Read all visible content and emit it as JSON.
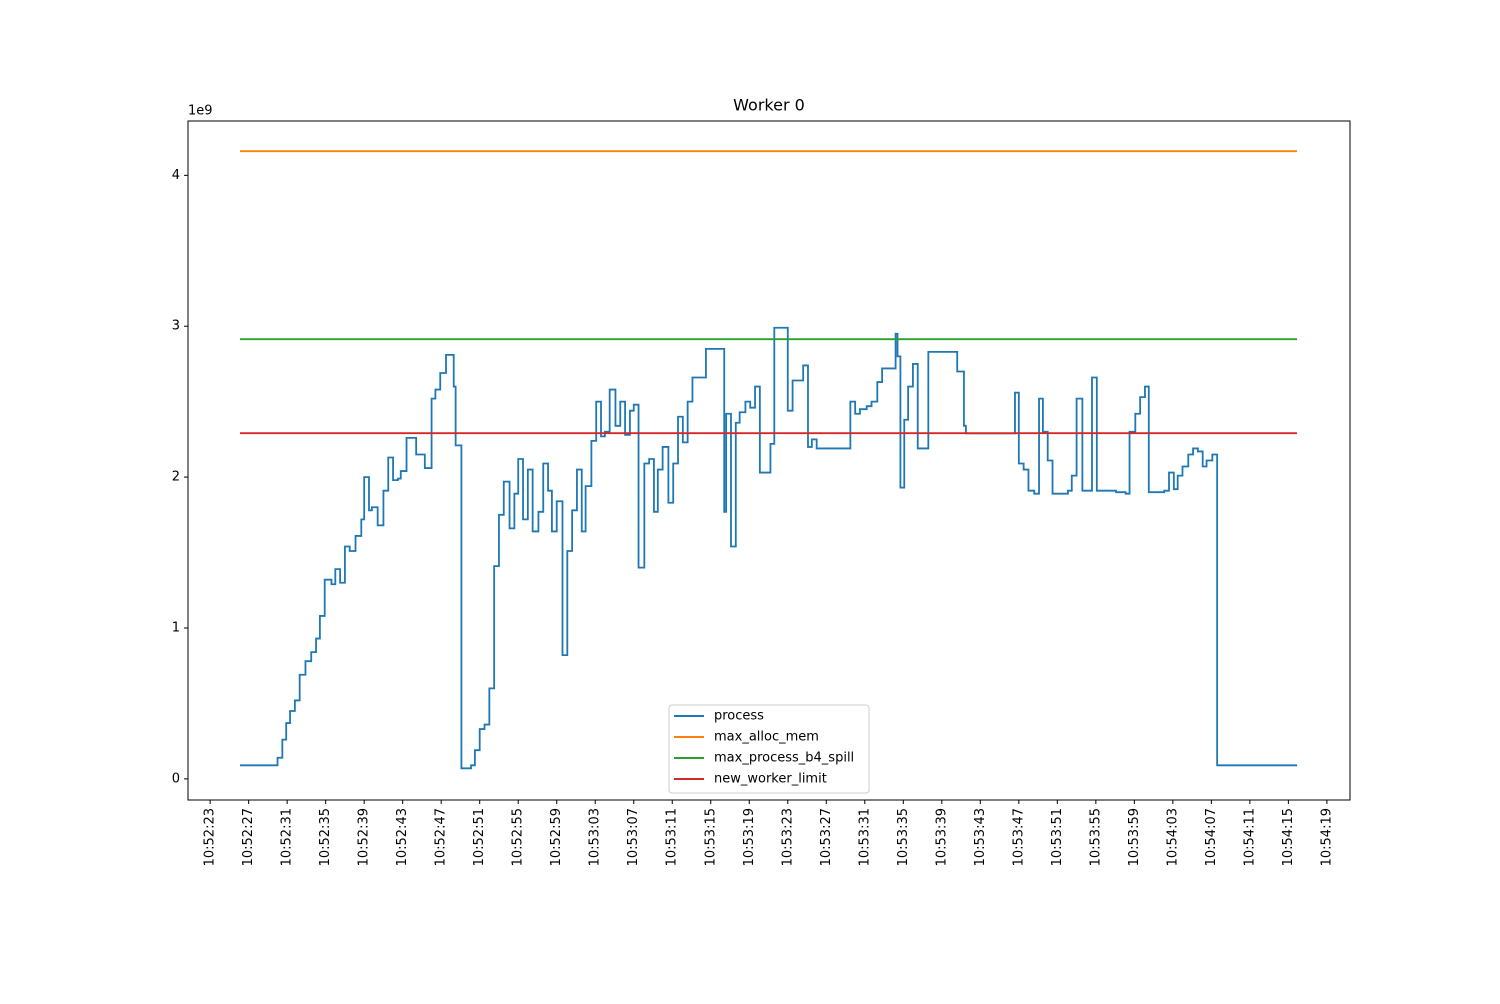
{
  "chart_data": {
    "type": "line",
    "drawstyle": "steps-post",
    "title": "Worker 0",
    "y_offset_label": "1e9",
    "xlim": [
      "10:52:20.7",
      "10:54:21.4"
    ],
    "xticks": [
      "10:52:23",
      "10:52:27",
      "10:52:31",
      "10:52:35",
      "10:52:39",
      "10:52:43",
      "10:52:47",
      "10:52:51",
      "10:52:55",
      "10:52:59",
      "10:53:03",
      "10:53:07",
      "10:53:11",
      "10:53:15",
      "10:53:19",
      "10:53:23",
      "10:53:27",
      "10:53:31",
      "10:53:35",
      "10:53:39",
      "10:53:43",
      "10:53:47",
      "10:53:51",
      "10:53:55",
      "10:53:59",
      "10:54:03",
      "10:54:07",
      "10:54:11",
      "10:54:15",
      "10:54:19"
    ],
    "ylim": [
      -0.14,
      4.36
    ],
    "yticks": [
      0,
      1,
      2,
      3,
      4
    ],
    "grid": false,
    "legend": "lower center",
    "series": [
      {
        "name": "process",
        "color": "#1f77b4",
        "x": [
          "10:52:26.1",
          "10:52:30.0",
          "10:52:30.5",
          "10:52:30.9",
          "10:52:31.3",
          "10:52:31.8",
          "10:52:32.3",
          "10:52:32.9",
          "10:52:33.5",
          "10:52:34.0",
          "10:52:34.4",
          "10:52:34.9",
          "10:52:35.6",
          "10:52:36.0",
          "10:52:36.5",
          "10:52:37.0",
          "10:52:37.5",
          "10:52:38.1",
          "10:52:38.7",
          "10:52:39.0",
          "10:52:39.5",
          "10:52:39.8",
          "10:52:40.4",
          "10:52:41.0",
          "10:52:41.5",
          "10:52:42.0",
          "10:52:42.5",
          "10:52:42.8",
          "10:52:43.4",
          "10:52:44.4",
          "10:52:45.3",
          "10:52:46.0",
          "10:52:46.4",
          "10:52:46.9",
          "10:52:47.5",
          "10:52:48.3",
          "10:52:48.5",
          "10:52:49.1",
          "10:52:50.1",
          "10:52:50.5",
          "10:52:51.0",
          "10:52:51.5",
          "10:52:52.0",
          "10:52:52.5",
          "10:52:53.0",
          "10:52:53.5",
          "10:52:54.1",
          "10:52:54.6",
          "10:52:55.0",
          "10:52:55.5",
          "10:52:56.0",
          "10:52:56.5",
          "10:52:57.1",
          "10:52:57.6",
          "10:52:58.1",
          "10:52:58.5",
          "10:52:59.0",
          "10:52:59.6",
          "10:53:00.1",
          "10:53:00.6",
          "10:53:01.1",
          "10:53:01.6",
          "10:53:02.0",
          "10:53:02.6",
          "10:53:03.1",
          "10:53:03.6",
          "10:53:04.0",
          "10:53:04.5",
          "10:53:05.1",
          "10:53:05.6",
          "10:53:06.1",
          "10:53:06.6",
          "10:53:07.0",
          "10:53:07.5",
          "10:53:08.1",
          "10:53:08.6",
          "10:53:09.1",
          "10:53:09.5",
          "10:53:10.0",
          "10:53:10.6",
          "10:53:11.1",
          "10:53:11.6",
          "10:53:12.1",
          "10:53:12.6",
          "10:53:13.1",
          "10:53:14.5",
          "10:53:16.4",
          "10:53:16.6",
          "10:53:17.1",
          "10:53:17.6",
          "10:53:18.0",
          "10:53:18.6",
          "10:53:19.1",
          "10:53:19.6",
          "10:53:20.1",
          "10:53:21.2",
          "10:53:21.6",
          "10:53:23.0",
          "10:53:23.5",
          "10:53:24.6",
          "10:53:25.1",
          "10:53:25.5",
          "10:53:26.0",
          "10:53:29.5",
          "10:53:30.0",
          "10:53:30.5",
          "10:53:31.2",
          "10:53:31.7",
          "10:53:32.3",
          "10:53:32.8",
          "10:53:34.2",
          "10:53:34.4",
          "10:53:34.7",
          "10:53:35.1",
          "10:53:35.5",
          "10:53:36.0",
          "10:53:36.5",
          "10:53:37.6",
          "10:53:40.6",
          "10:53:41.3",
          "10:53:41.5",
          "10:53:46.6",
          "10:53:47.0",
          "10:53:47.5",
          "10:53:48.0",
          "10:53:48.6",
          "10:53:49.1",
          "10:53:49.5",
          "10:53:50.0",
          "10:53:50.5",
          "10:53:52.1",
          "10:53:52.5",
          "10:53:53.0",
          "10:53:53.6",
          "10:53:54.1",
          "10:53:54.6",
          "10:53:55.1",
          "10:53:57.1",
          "10:53:58.1",
          "10:53:58.5",
          "10:53:59.1",
          "10:53:59.6",
          "10:54:00.1",
          "10:54:00.5",
          "10:54:02.1",
          "10:54:02.6",
          "10:54:03.1",
          "10:54:03.5",
          "10:54:04.0",
          "10:54:04.6",
          "10:54:05.1",
          "10:54:05.6",
          "10:54:06.1",
          "10:54:06.5",
          "10:54:07.1",
          "10:54:07.6",
          "10:54:15.9"
        ],
        "values": [
          0.09,
          0.14,
          0.26,
          0.37,
          0.45,
          0.52,
          0.69,
          0.78,
          0.84,
          0.93,
          1.08,
          1.32,
          1.29,
          1.39,
          1.3,
          1.54,
          1.51,
          1.61,
          1.72,
          2.0,
          1.78,
          1.8,
          1.68,
          1.91,
          2.13,
          1.98,
          1.99,
          2.04,
          2.26,
          2.15,
          2.06,
          2.52,
          2.58,
          2.69,
          2.81,
          2.6,
          2.21,
          0.07,
          0.09,
          0.19,
          0.33,
          0.36,
          0.6,
          1.41,
          1.75,
          1.97,
          1.66,
          1.89,
          2.12,
          1.72,
          2.05,
          1.64,
          1.77,
          2.09,
          1.91,
          1.64,
          1.84,
          0.82,
          1.51,
          1.78,
          2.05,
          1.64,
          1.94,
          2.24,
          2.5,
          2.27,
          2.3,
          2.58,
          2.34,
          2.5,
          2.28,
          2.44,
          2.48,
          1.4,
          2.09,
          2.12,
          1.77,
          2.05,
          2.2,
          1.83,
          2.09,
          2.4,
          2.23,
          2.5,
          2.66,
          2.85,
          1.77,
          2.42,
          1.54,
          2.36,
          2.43,
          2.5,
          2.46,
          2.6,
          2.03,
          2.22,
          2.99,
          2.44,
          2.64,
          2.74,
          2.2,
          2.25,
          2.19,
          2.5,
          2.42,
          2.45,
          2.47,
          2.5,
          2.63,
          2.72,
          2.95,
          2.8,
          1.93,
          2.38,
          2.6,
          2.75,
          2.19,
          2.83,
          2.7,
          2.34,
          2.29,
          2.56,
          2.09,
          2.05,
          1.91,
          1.89,
          2.52,
          2.3,
          2.11,
          1.89,
          1.91,
          2.01,
          2.52,
          1.91,
          1.91,
          2.66,
          1.91,
          1.9,
          1.89,
          2.3,
          2.42,
          2.53,
          2.6,
          1.9,
          1.91,
          2.03,
          1.92,
          2.01,
          2.07,
          2.15,
          2.19,
          2.17,
          2.07,
          2.11,
          2.15,
          0.09,
          0.09
        ]
      },
      {
        "name": "max_alloc_mem",
        "color": "#ff7f0e",
        "x": [
          "10:52:26.1",
          "10:54:15.9"
        ],
        "values": [
          4.16,
          4.16
        ]
      },
      {
        "name": "max_process_b4_spill",
        "color": "#2ca02c",
        "x": [
          "10:52:26.1",
          "10:54:15.9"
        ],
        "values": [
          2.914,
          2.914
        ]
      },
      {
        "name": "new_worker_limit",
        "color": "#d62728",
        "x": [
          "10:52:26.1",
          "10:54:15.9"
        ],
        "values": [
          2.291,
          2.291
        ]
      }
    ]
  }
}
